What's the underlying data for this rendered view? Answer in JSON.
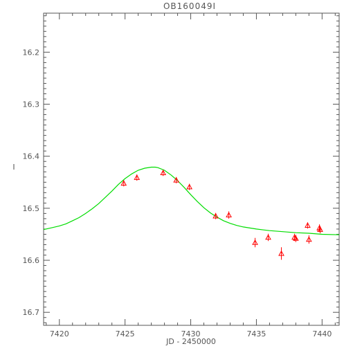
{
  "chart_data": {
    "type": "scatter",
    "title": "OB160049I",
    "xlabel": "JD - 2450000",
    "ylabel": "I",
    "xlim": [
      7418.8,
      7441.3
    ],
    "ylim": [
      16.125,
      16.725
    ],
    "y_inverted": true,
    "grid": false,
    "x_ticks": [
      7420,
      7425,
      7430,
      7435,
      7440
    ],
    "x_tick_labels": [
      "7420",
      "7425",
      "7430",
      "7435",
      "7440"
    ],
    "y_ticks": [
      16.2,
      16.3,
      16.4,
      16.5,
      16.6,
      16.7
    ],
    "y_tick_labels": [
      "16.2",
      "16.3",
      "16.4",
      "16.5",
      "16.6",
      "16.7"
    ],
    "colors": {
      "points": "#ff0000",
      "model": "#00dd00",
      "axes": "#555555"
    },
    "series": [
      {
        "kind": "points",
        "marker": "triangle",
        "x": [
          7424.9,
          7425.9,
          7427.9,
          7428.9,
          7429.9,
          7431.9,
          7432.9,
          7434.9,
          7435.9,
          7436.9,
          7437.9,
          7438.0,
          7438.9,
          7439.0,
          7439.8,
          7439.85
        ],
        "y": [
          16.452,
          16.441,
          16.432,
          16.446,
          16.459,
          16.515,
          16.513,
          16.566,
          16.556,
          16.587,
          16.556,
          16.558,
          16.533,
          16.56,
          16.538,
          16.541
        ],
        "yerr": [
          0.006,
          0.006,
          0.006,
          0.006,
          0.006,
          0.006,
          0.007,
          0.009,
          0.007,
          0.012,
          0.007,
          0.007,
          0.006,
          0.008,
          0.007,
          0.007
        ]
      },
      {
        "kind": "model",
        "x": [
          7418.8,
          7419.5,
          7420.0,
          7420.5,
          7421.0,
          7421.5,
          7422.0,
          7422.5,
          7423.0,
          7423.5,
          7424.0,
          7424.5,
          7425.0,
          7425.5,
          7426.0,
          7426.5,
          7427.0,
          7427.3,
          7427.5,
          7428.0,
          7428.5,
          7429.0,
          7429.5,
          7430.0,
          7430.5,
          7431.0,
          7431.5,
          7432.0,
          7432.5,
          7433.0,
          7433.5,
          7434.0,
          7435.0,
          7436.0,
          7437.0,
          7438.0,
          7439.0,
          7440.0,
          7441.3
        ],
        "y": [
          16.541,
          16.537,
          16.534,
          16.53,
          16.524,
          16.518,
          16.51,
          16.501,
          16.491,
          16.479,
          16.467,
          16.454,
          16.443,
          16.434,
          16.427,
          16.423,
          16.421,
          16.421,
          16.422,
          16.427,
          16.436,
          16.447,
          16.46,
          16.474,
          16.487,
          16.499,
          16.509,
          16.517,
          16.524,
          16.529,
          16.533,
          16.536,
          16.54,
          16.543,
          16.545,
          16.547,
          16.548,
          16.55,
          16.551
        ]
      }
    ]
  }
}
